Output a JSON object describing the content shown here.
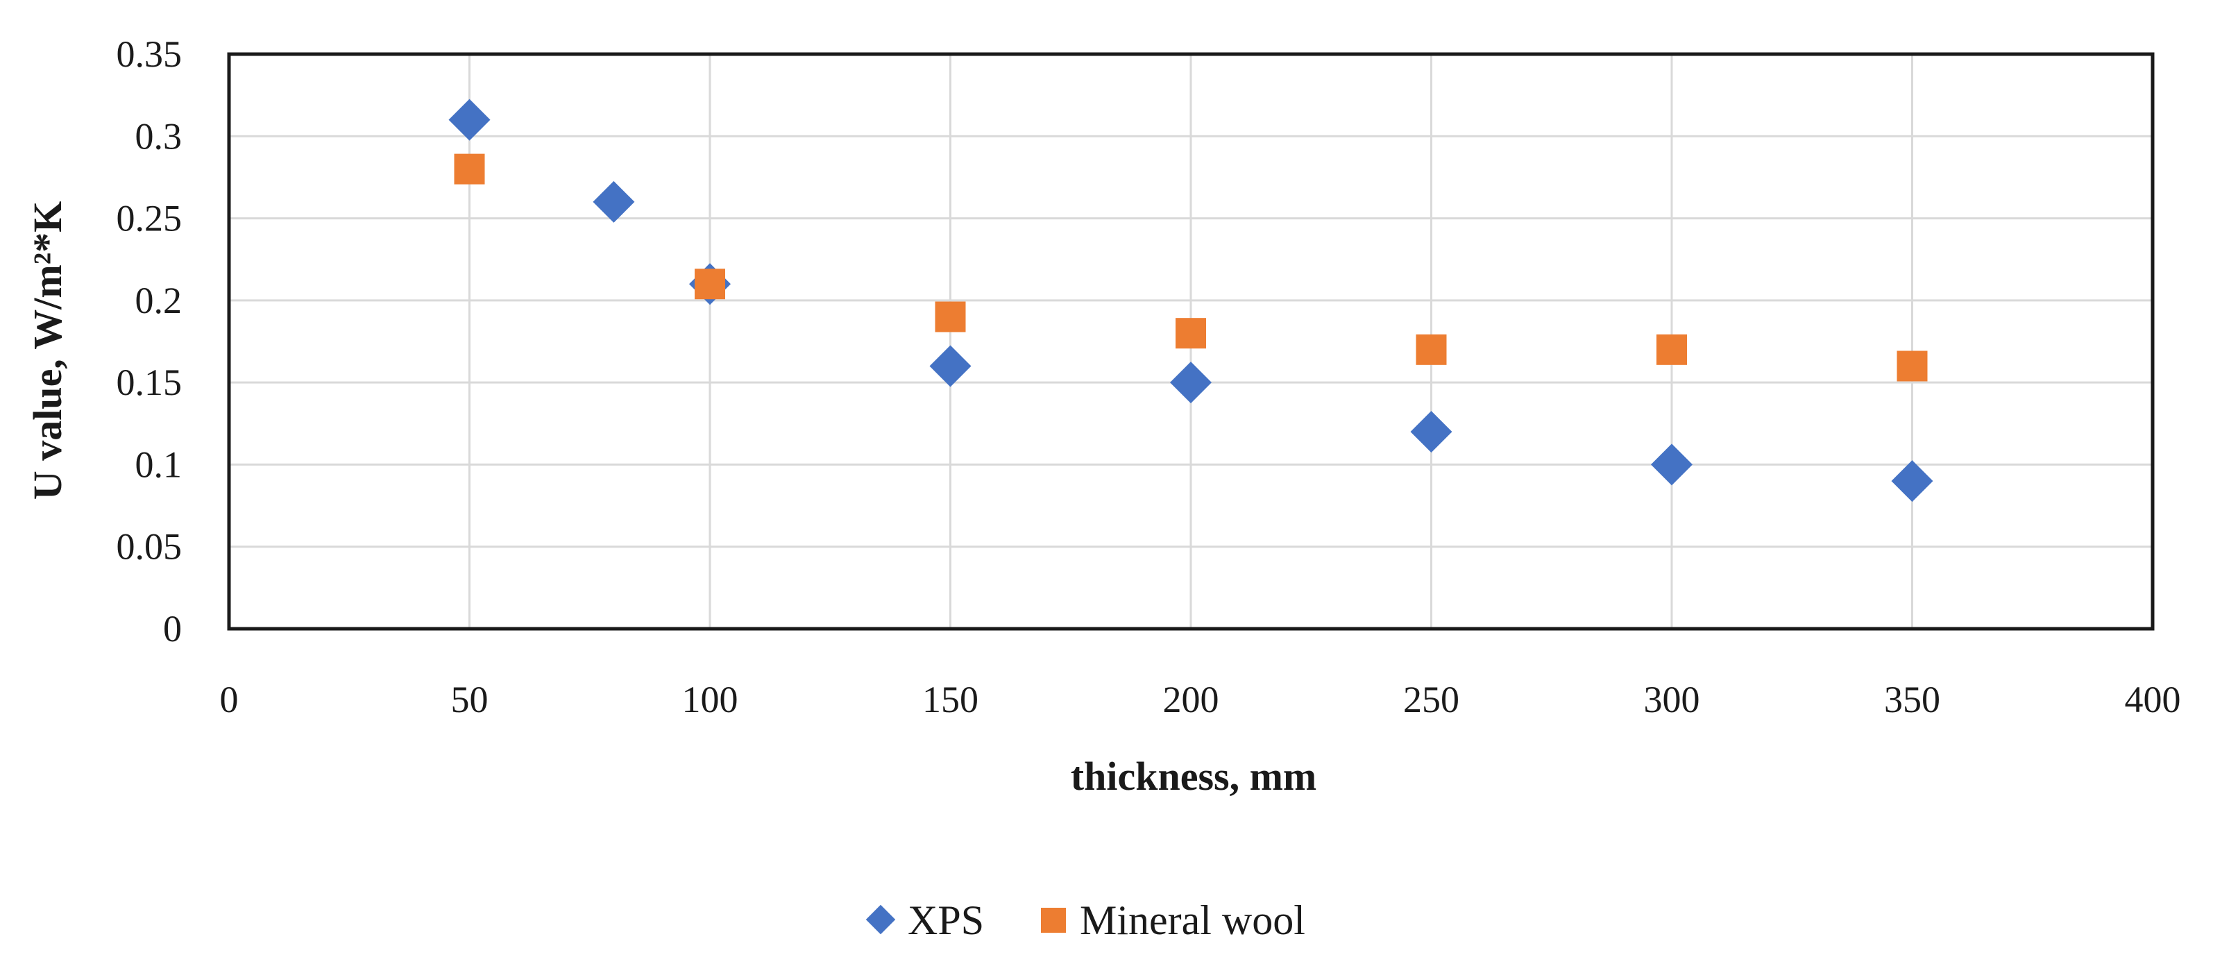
{
  "chart_data": {
    "type": "scatter",
    "title": "",
    "xlabel": "thickness, mm",
    "ylabel": "U value, W/m²*K",
    "xlim": [
      0,
      400
    ],
    "ylim": [
      0,
      0.35
    ],
    "grid": true,
    "legend_position": "bottom-center",
    "x_ticks": [
      "0",
      "50",
      "100",
      "150",
      "200",
      "250",
      "300",
      "350",
      "400"
    ],
    "y_ticks": [
      "0",
      "0.05",
      "0.1",
      "0.15",
      "0.2",
      "0.25",
      "0.3",
      "0.35"
    ],
    "series": [
      {
        "name": "XPS",
        "marker": "diamond",
        "color": "#4472C4",
        "x": [
          50,
          80,
          100,
          150,
          200,
          250,
          300,
          350
        ],
        "y": [
          0.31,
          0.26,
          0.21,
          0.16,
          0.15,
          0.12,
          0.1,
          0.09
        ]
      },
      {
        "name": "Mineral wool",
        "marker": "square",
        "color": "#ED7D31",
        "x": [
          50,
          100,
          150,
          200,
          250,
          300,
          350
        ],
        "y": [
          0.28,
          0.21,
          0.19,
          0.18,
          0.17,
          0.17,
          0.16
        ]
      }
    ]
  }
}
